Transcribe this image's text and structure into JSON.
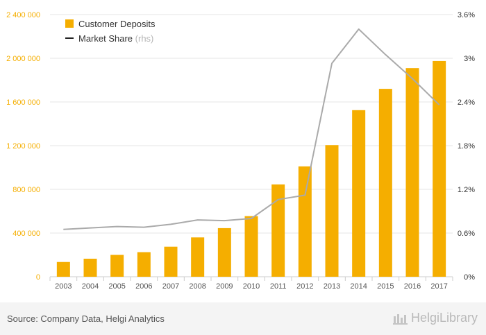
{
  "chart_data": {
    "type": "bar",
    "categories": [
      "2003",
      "2004",
      "2005",
      "2006",
      "2007",
      "2008",
      "2009",
      "2010",
      "2011",
      "2012",
      "2013",
      "2014",
      "2015",
      "2016",
      "2017"
    ],
    "series": [
      {
        "name": "Customer Deposits",
        "type": "bar",
        "axis": "left",
        "color": "#f5ae00",
        "values": [
          135000,
          165000,
          200000,
          225000,
          275000,
          360000,
          445000,
          555000,
          845000,
          1010000,
          1205000,
          1525000,
          1720000,
          1910000,
          1975000
        ]
      },
      {
        "name": "Market Share",
        "type": "line",
        "axis": "right",
        "color": "#aaaaaa",
        "values": [
          0.65,
          0.67,
          0.69,
          0.68,
          0.72,
          0.78,
          0.77,
          0.8,
          1.06,
          1.12,
          2.93,
          3.4,
          3.05,
          2.72,
          2.36
        ]
      }
    ],
    "ylim_left": [
      0,
      2400000
    ],
    "left_ticks": [
      "0",
      "400 000",
      "800 000",
      "1 200 000",
      "1 600 000",
      "2 000 000",
      "2 400 000"
    ],
    "ylim_right": [
      0,
      3.6
    ],
    "right_ticks": [
      "0%",
      "0.6%",
      "1.2%",
      "1.8%",
      "2.4%",
      "3%",
      "3.6%"
    ],
    "legend": {
      "position": "top-left",
      "deposits_label": "Customer Deposits",
      "share_label": "Market Share",
      "share_suffix": "(rhs)"
    },
    "grid": true
  },
  "footer": {
    "source": "Source: Company Data, Helgi Analytics",
    "brand": "HelgiLibrary"
  },
  "colors": {
    "bar": "#f5ae00",
    "line": "#aaaaaa",
    "left_axis_text": "#f5ae00",
    "right_axis_text": "#333333"
  }
}
